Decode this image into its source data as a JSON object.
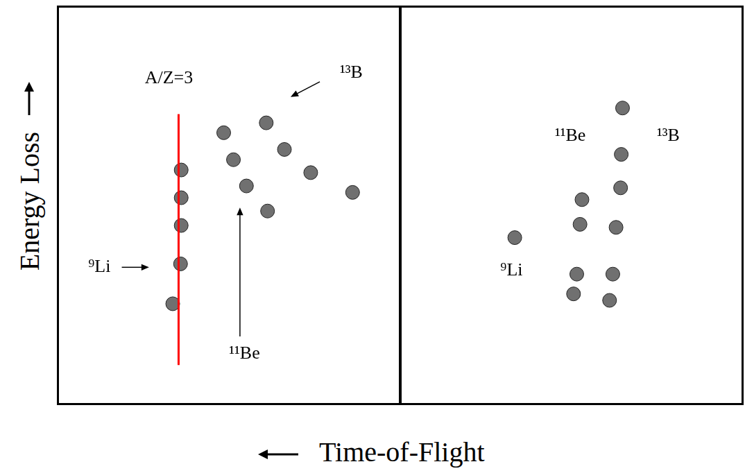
{
  "x_label": "Time-of-Flight",
  "y_label": "Energy Loss",
  "chart_data": [
    {
      "type": "scatter",
      "color": "#707070",
      "tick_labels": false,
      "xlim": [
        0,
        100
      ],
      "ylim": [
        0,
        100
      ],
      "x": [
        32.7,
        35.1,
        35.3,
        35.3,
        35.3,
        48.4,
        51.4,
        55.4,
        61.9,
        61.5,
        67.1,
        75.2,
        88.1
      ],
      "values": [
        24.1,
        34.6,
        44.7,
        52.0,
        59.3,
        69.1,
        62.0,
        55.1,
        48.5,
        71.7,
        64.7,
        58.6,
        53.4
      ],
      "reference_line": {
        "x": 34.5,
        "y": [
          8,
          74
        ],
        "color": "#ff0000"
      },
      "annotations": [
        {
          "text": "A/Z=3",
          "x": 31.5,
          "y": 83.4
        },
        {
          "text": "⁹Li",
          "x": 10.1,
          "y": 33.7,
          "arrow": [
            [
              17,
              33.7
            ],
            [
              25.4,
              33.7
            ]
          ]
        },
        {
          "text": "¹¹Be",
          "x": 54.8,
          "y": 11.0,
          "arrow": [
            [
              53.4,
              15.5
            ],
            [
              53.4,
              49.4
            ]
          ]
        },
        {
          "text": "¹³B",
          "x": 87.7,
          "y": 84.8,
          "arrow": [
            [
              78,
              82.5
            ],
            [
              69,
              78.5
            ]
          ]
        }
      ]
    },
    {
      "type": "scatter",
      "color": "#707070",
      "tick_labels": false,
      "xlim": [
        0,
        100
      ],
      "ylim": [
        0,
        100
      ],
      "x": [
        32.5,
        53.2,
        52.6,
        51.6,
        50.6,
        65.3,
        65.7,
        65.1,
        63.7,
        62.7,
        61.7
      ],
      "values": [
        41.5,
        51.5,
        45.0,
        31.9,
        26.7,
        63.4,
        75.6,
        54.6,
        44.2,
        31.9,
        25.0
      ],
      "annotations": [
        {
          "text": "¹¹Be",
          "x": 49.6,
          "y": 68.2
        },
        {
          "text": "¹³B",
          "x": 79.8,
          "y": 68.2
        },
        {
          "text": "⁹Li",
          "x": 31.5,
          "y": 32.8
        }
      ]
    }
  ]
}
